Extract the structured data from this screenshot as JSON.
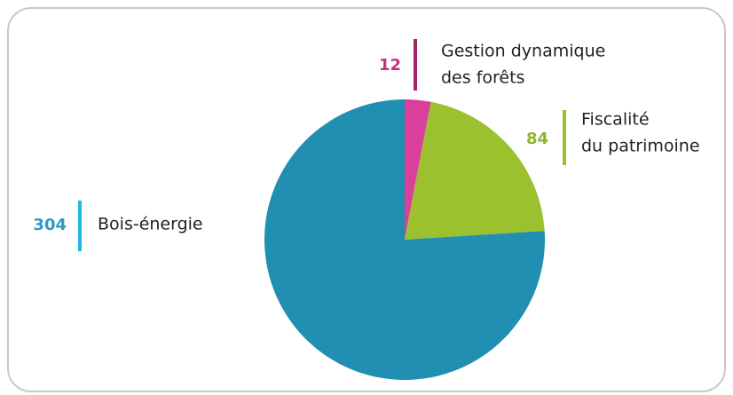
{
  "chart_data": {
    "type": "pie",
    "categories": [
      [
        "Gestion dynamique",
        "des forêts"
      ],
      [
        "Fiscalité",
        "du patrimoine"
      ],
      [
        "Bois-énergie"
      ]
    ],
    "values": [
      12,
      84,
      304
    ],
    "colors": [
      "#d93f9b",
      "#9bc12f",
      "#208fb1"
    ],
    "label_colors": [
      "#c2327f",
      "#8cb62a",
      "#2b9cc2"
    ],
    "bar_colors": [
      "#a3246c",
      "#9bc12f",
      "#22b6e2"
    ]
  }
}
